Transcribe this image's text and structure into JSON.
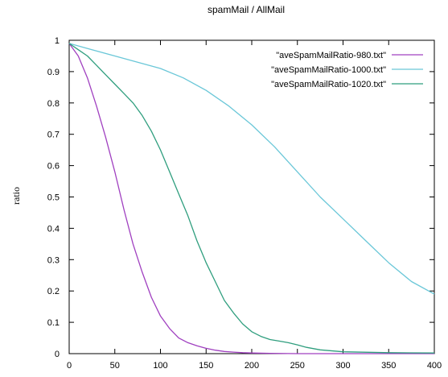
{
  "chart_data": {
    "type": "line",
    "title": "spamMail / AllMail",
    "xlabel": "",
    "ylabel": "ratio",
    "xlim": [
      0,
      400
    ],
    "ylim": [
      0,
      1
    ],
    "xticks": [
      "0",
      "50",
      "100",
      "150",
      "200",
      "250",
      "300",
      "350",
      "400"
    ],
    "yticks": [
      "0",
      "0.1",
      "0.2",
      "0.3",
      "0.4",
      "0.5",
      "0.6",
      "0.7",
      "0.8",
      "0.9",
      "1"
    ],
    "grid": false,
    "legend_position": "top-right",
    "series": [
      {
        "name": "\"aveSpamMailRatio-980.txt\"",
        "color": "#a040c0",
        "x": [
          0,
          10,
          20,
          30,
          40,
          50,
          60,
          70,
          80,
          90,
          100,
          110,
          120,
          130,
          140,
          150,
          160,
          170,
          180,
          190,
          200,
          220,
          250,
          300,
          350,
          400
        ],
        "y": [
          0.99,
          0.95,
          0.88,
          0.79,
          0.69,
          0.58,
          0.46,
          0.35,
          0.26,
          0.18,
          0.12,
          0.08,
          0.05,
          0.035,
          0.025,
          0.017,
          0.011,
          0.007,
          0.005,
          0.003,
          0.002,
          0.001,
          0.0,
          0.0,
          0.0,
          0.0
        ]
      },
      {
        "name": "\"aveSpamMailRatio-1000.txt\"",
        "color": "#6ac7d8",
        "x": [
          0,
          25,
          50,
          75,
          100,
          125,
          150,
          175,
          200,
          225,
          250,
          275,
          300,
          325,
          350,
          375,
          400
        ],
        "y": [
          0.99,
          0.97,
          0.95,
          0.93,
          0.91,
          0.88,
          0.84,
          0.79,
          0.73,
          0.66,
          0.58,
          0.5,
          0.43,
          0.36,
          0.29,
          0.23,
          0.19
        ]
      },
      {
        "name": "\"aveSpamMailRatio-1020.txt\"",
        "color": "#2f9e7e",
        "x": [
          0,
          10,
          20,
          30,
          40,
          50,
          60,
          70,
          80,
          90,
          100,
          110,
          120,
          130,
          140,
          150,
          160,
          170,
          180,
          190,
          200,
          210,
          220,
          230,
          240,
          250,
          260,
          275,
          300,
          350,
          400
        ],
        "y": [
          0.99,
          0.97,
          0.95,
          0.92,
          0.89,
          0.86,
          0.83,
          0.8,
          0.76,
          0.71,
          0.65,
          0.58,
          0.51,
          0.44,
          0.36,
          0.29,
          0.23,
          0.17,
          0.13,
          0.095,
          0.07,
          0.055,
          0.045,
          0.04,
          0.035,
          0.028,
          0.02,
          0.012,
          0.006,
          0.003,
          0.002
        ]
      }
    ]
  }
}
